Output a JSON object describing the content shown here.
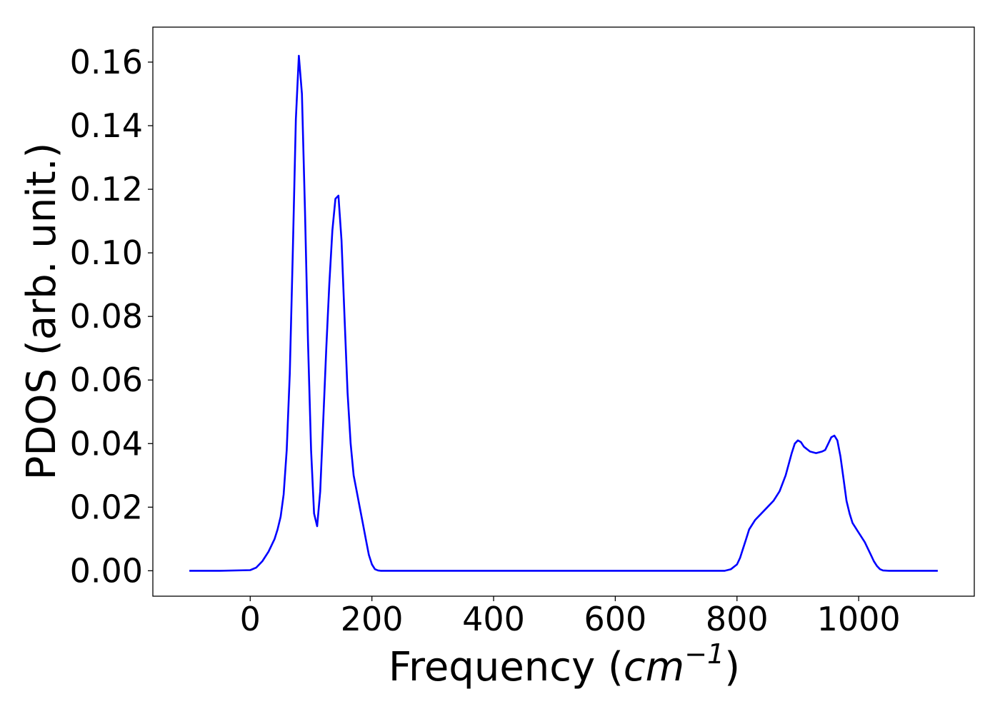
{
  "chart_data": {
    "type": "line",
    "title": "",
    "xlabel_main": "Frequency (",
    "xlabel_unit": "cm",
    "xlabel_exp": "−1",
    "xlabel_close": ")",
    "ylabel": "PDOS (arb. unit.)",
    "xlim": [
      -160,
      1190
    ],
    "ylim": [
      -0.008,
      0.171
    ],
    "xticks": [
      0,
      200,
      400,
      600,
      800,
      1000
    ],
    "xtick_labels": [
      "0",
      "200",
      "400",
      "600",
      "800",
      "1000"
    ],
    "yticks": [
      0.0,
      0.02,
      0.04,
      0.06,
      0.08,
      0.1,
      0.12,
      0.14,
      0.16
    ],
    "ytick_labels": [
      "0.00",
      "0.02",
      "0.04",
      "0.06",
      "0.08",
      "0.10",
      "0.12",
      "0.14",
      "0.16"
    ],
    "grid": false,
    "series": [
      {
        "color": "#0000ff",
        "x": [
          -100,
          -50,
          0,
          10,
          20,
          30,
          40,
          45,
          50,
          55,
          60,
          65,
          70,
          75,
          80,
          85,
          90,
          95,
          100,
          105,
          110,
          115,
          120,
          125,
          130,
          135,
          140,
          145,
          150,
          155,
          160,
          165,
          170,
          175,
          180,
          185,
          190,
          195,
          200,
          205,
          210,
          215,
          220,
          225,
          230,
          235,
          240,
          250,
          300,
          400,
          500,
          600,
          700,
          780,
          790,
          800,
          805,
          810,
          815,
          820,
          830,
          840,
          850,
          860,
          870,
          880,
          890,
          895,
          900,
          905,
          910,
          920,
          930,
          940,
          945,
          950,
          955,
          960,
          965,
          970,
          975,
          980,
          985,
          990,
          1000,
          1010,
          1020,
          1025,
          1030,
          1035,
          1040,
          1050,
          1070,
          1100,
          1130
        ],
        "values": [
          0.0,
          0.0,
          0.0002,
          0.001,
          0.003,
          0.006,
          0.01,
          0.013,
          0.017,
          0.024,
          0.038,
          0.062,
          0.1,
          0.142,
          0.162,
          0.15,
          0.113,
          0.072,
          0.038,
          0.018,
          0.014,
          0.025,
          0.047,
          0.07,
          0.09,
          0.107,
          0.117,
          0.118,
          0.104,
          0.08,
          0.056,
          0.04,
          0.03,
          0.025,
          0.02,
          0.015,
          0.01,
          0.005,
          0.002,
          0.0005,
          0.0001,
          0.0,
          0.0,
          0.0,
          0.0,
          0.0,
          0.0,
          0.0,
          0.0,
          0.0,
          0.0,
          0.0,
          0.0,
          0.0,
          0.0005,
          0.002,
          0.004,
          0.007,
          0.01,
          0.013,
          0.016,
          0.018,
          0.02,
          0.022,
          0.025,
          0.03,
          0.037,
          0.04,
          0.041,
          0.0405,
          0.039,
          0.0375,
          0.037,
          0.0375,
          0.038,
          0.04,
          0.042,
          0.0425,
          0.041,
          0.036,
          0.029,
          0.022,
          0.018,
          0.015,
          0.012,
          0.009,
          0.005,
          0.003,
          0.0015,
          0.0005,
          0.0001,
          0.0,
          0.0,
          0.0,
          0.0
        ]
      }
    ]
  }
}
